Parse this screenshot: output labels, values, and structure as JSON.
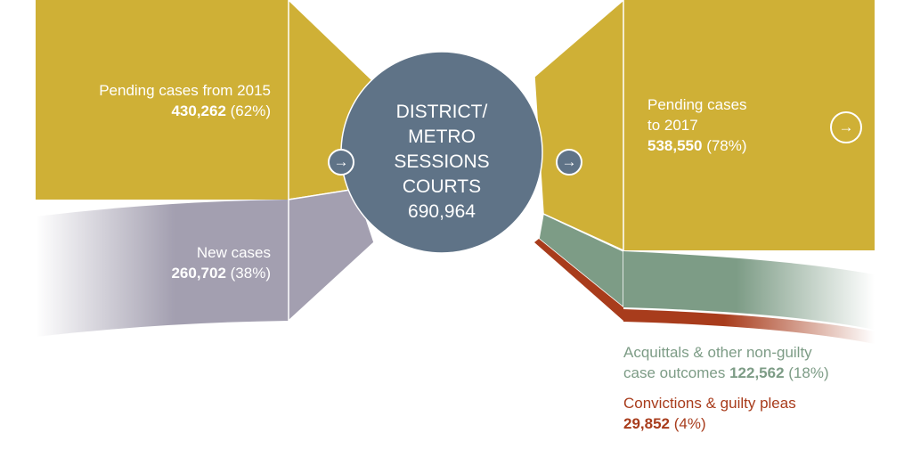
{
  "inputs": {
    "pending_2015": {
      "label": "Pending cases from 2015",
      "value": "430,262",
      "pct": "(62%)"
    },
    "new_cases": {
      "label": "New cases",
      "value": "260,702",
      "pct": "(38%)"
    }
  },
  "center": {
    "lines": [
      "DISTRICT/",
      "METRO",
      "SESSIONS",
      "COURTS"
    ],
    "total": "690,964"
  },
  "outputs": {
    "pending_2017": {
      "label_line1": "Pending cases",
      "label_line2": "to 2017",
      "value": "538,550",
      "pct": "(78%)"
    },
    "acquittals": {
      "label_line1": "Acquittals & other non-guilty",
      "label_line2": "case outcomes",
      "value": "122,562",
      "pct": "(18%)"
    },
    "convictions": {
      "label": "Convictions & guilty pleas",
      "value": "29,852",
      "pct": "(4%)"
    }
  },
  "colors": {
    "pending": "#cfb036",
    "new": "#a39fb0",
    "court": "#5f7387",
    "acquittal": "#7d9c86",
    "conviction": "#a83c1c"
  },
  "icons": {
    "arrow": "→"
  }
}
